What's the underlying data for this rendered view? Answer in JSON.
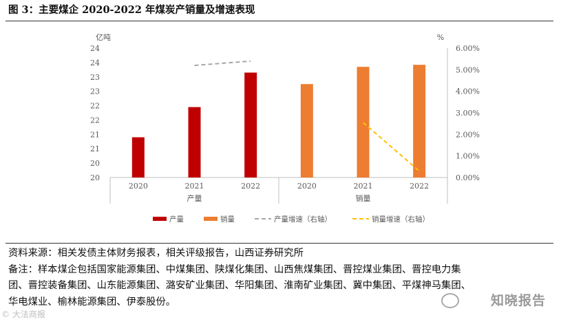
{
  "figure": {
    "title": "图 3：主要煤企 2020-2022 年煤炭产销量及增速表现"
  },
  "chart_data": {
    "type": "bar",
    "left_axis": {
      "unit": "亿吨",
      "ticks": [
        "24",
        "24",
        "23",
        "23",
        "22",
        "22",
        "21",
        "21",
        "20",
        "20"
      ],
      "range": [
        20,
        24.5
      ]
    },
    "right_axis": {
      "unit": "%",
      "ticks": [
        "6.00%",
        "5.00%",
        "4.00%",
        "3.00%",
        "2.00%",
        "1.00%",
        "0.00%"
      ],
      "range": [
        0,
        6
      ]
    },
    "groups": [
      {
        "label": "产量",
        "categories": [
          "2020",
          "2021",
          "2022"
        ]
      },
      {
        "label": "销量",
        "categories": [
          "2020",
          "2021",
          "2022"
        ]
      }
    ],
    "series": [
      {
        "name": "产量",
        "type": "bar",
        "axis": "left",
        "group": 0,
        "values": [
          21.4,
          22.45,
          23.65
        ]
      },
      {
        "name": "销量",
        "type": "bar",
        "axis": "left",
        "group": 1,
        "values": [
          23.25,
          23.85,
          23.92
        ]
      },
      {
        "name": "产量增速（右轴）",
        "type": "line",
        "axis": "right",
        "group": 0,
        "x": [
          "2021",
          "2022"
        ],
        "values": [
          5.2,
          5.4
        ]
      },
      {
        "name": "销量增速（右轴）",
        "type": "line",
        "axis": "right",
        "group": 1,
        "x": [
          "2021",
          "2022"
        ],
        "values": [
          2.55,
          0.3
        ]
      }
    ],
    "grid": false,
    "legend_position": "bottom",
    "colors": {
      "产量": "#c00000",
      "销量": "#ed7d31",
      "产量增速（右轴）": "#a6a6a6",
      "销量增速（右轴）": "#ffc000"
    }
  },
  "notes": {
    "source": "资料来源：相关发债主体财务报表，相关评级报告，山西证券研究所",
    "remark_lines": [
      "备注：样本煤企包括国家能源集团、中煤集团、陕煤化集团、山西焦煤集团、晋控煤业集团、晋控电力集",
      "团、晋控装备集团、山东能源集团、潞安矿业集团、华阳集团、淮南矿业集团、冀中集团、平煤神马集团、",
      "华电煤业、榆林能源集团、伊泰股份。"
    ]
  },
  "watermark": {
    "text": "知晓报告",
    "corner": "©  大法商报"
  }
}
